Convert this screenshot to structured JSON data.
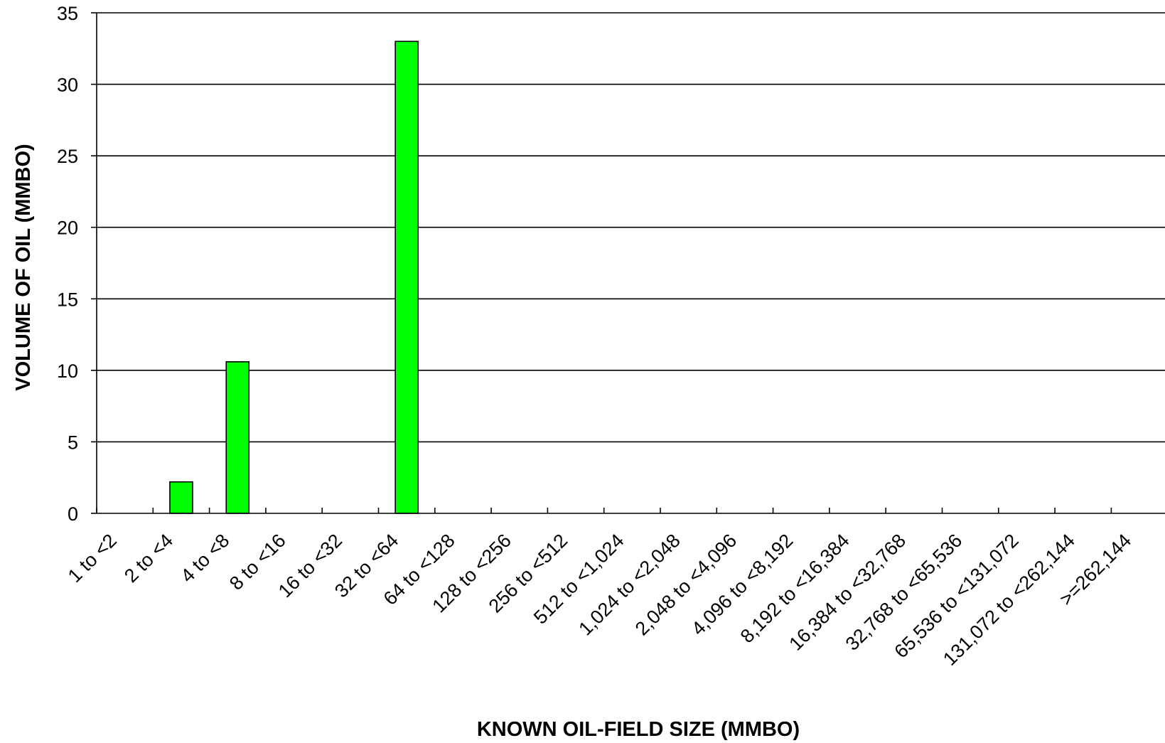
{
  "chart_data": {
    "type": "bar",
    "title": "",
    "xlabel": "KNOWN OIL-FIELD SIZE (MMBO)",
    "ylabel": "VOLUME OF OIL (MMBO)",
    "ylim": [
      0,
      35
    ],
    "yticks": [
      "0",
      "5",
      "10",
      "15",
      "20",
      "25",
      "30",
      "35"
    ],
    "grid": true,
    "legend": "none",
    "bar_color": "#00ff00",
    "categories": [
      "1 to <2",
      "2 to <4",
      "4 to <8",
      "8 to <16",
      "16 to <32",
      "32 to <64",
      "64 to <128",
      "128 to <256",
      "256 to <512",
      "512 to <1,024",
      "1,024 to <2,048",
      "2,048 to <4,096",
      "4,096 to <8,192",
      "8,192 to <16,384",
      "16,384 to <32,768",
      "32,768 to <65,536",
      "65,536 to <131,072",
      "131,072 to <262,144",
      ">=262,144"
    ],
    "values": [
      0,
      2.2,
      10.6,
      0,
      0,
      33.0,
      0,
      0,
      0,
      0,
      0,
      0,
      0,
      0,
      0,
      0,
      0,
      0,
      0
    ]
  }
}
